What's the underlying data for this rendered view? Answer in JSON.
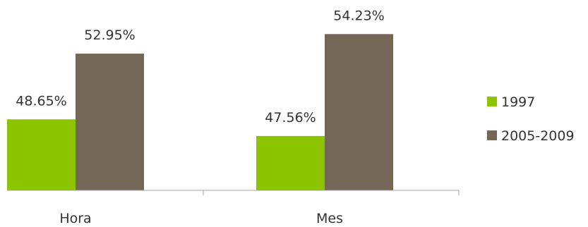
{
  "chart_data": {
    "type": "bar",
    "categories": [
      "Hora",
      "Mes"
    ],
    "series": [
      {
        "name": "1997",
        "color": "#8dc400",
        "values": [
          48.65,
          47.56
        ],
        "labels": [
          "48.65%",
          "47.56%"
        ]
      },
      {
        "name": "2005-2009",
        "color": "#746758",
        "values": [
          52.95,
          54.23
        ],
        "labels": [
          "52.95%",
          "54.23%"
        ]
      }
    ],
    "ylim": [
      44,
      56
    ],
    "grid": false,
    "legend": "right"
  }
}
